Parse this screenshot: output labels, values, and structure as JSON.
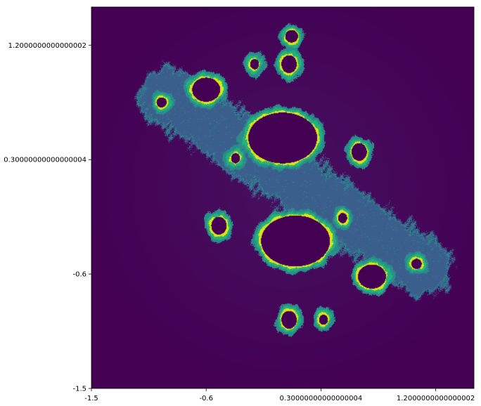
{
  "chart_data": {
    "type": "heatmap",
    "title": "",
    "xlabel": "",
    "ylabel": "",
    "xlim": [
      -1.5,
      1.5
    ],
    "ylim": [
      -1.5,
      1.5
    ],
    "grid": false,
    "colormap": "viridis",
    "background_color": "#440154",
    "colors": {
      "deep": "#440154",
      "outer": "#46105f",
      "blue": "#3b5f8d",
      "teal": "#2a8d8a",
      "green": "#22b37a",
      "yellow": "#dde318",
      "interior": "#440154"
    },
    "x_ticks": [
      {
        "value": -1.5,
        "label": "-1.5"
      },
      {
        "value": -0.6,
        "label": "-0.6"
      },
      {
        "value": 0.30000000000000004,
        "label": "0.30000000000000004"
      },
      {
        "value": 1.2000000000000002,
        "label": "1.2000000000000002"
      }
    ],
    "y_ticks": [
      {
        "value": -1.5,
        "label": "-1.5"
      },
      {
        "value": -0.6,
        "label": "-0.6"
      },
      {
        "value": 0.30000000000000004,
        "label": "0.30000000000000004"
      },
      {
        "value": 1.2000000000000002,
        "label": "1.2000000000000002"
      }
    ],
    "fractal": {
      "kind": "julia set",
      "interior_blobs": [
        {
          "x": 0.0,
          "y": 0.47,
          "rx": 0.27,
          "ry": 0.2
        },
        {
          "x": -0.6,
          "y": 0.85,
          "rx": 0.11,
          "ry": 0.095
        },
        {
          "x": 0.6,
          "y": 0.36,
          "rx": 0.06,
          "ry": 0.07
        },
        {
          "x": -0.95,
          "y": 0.75,
          "rx": 0.04,
          "ry": 0.04
        },
        {
          "x": -0.37,
          "y": 0.31,
          "rx": 0.035,
          "ry": 0.04
        },
        {
          "x": 0.05,
          "y": 1.05,
          "rx": 0.06,
          "ry": 0.07
        },
        {
          "x": 0.07,
          "y": 1.27,
          "rx": 0.05,
          "ry": 0.05
        },
        {
          "x": -0.22,
          "y": 1.05,
          "rx": 0.035,
          "ry": 0.04
        },
        {
          "x": 0.1,
          "y": -0.34,
          "rx": 0.27,
          "ry": 0.2
        },
        {
          "x": 0.7,
          "y": -0.62,
          "rx": 0.11,
          "ry": 0.095
        },
        {
          "x": -0.5,
          "y": -0.22,
          "rx": 0.06,
          "ry": 0.07
        },
        {
          "x": 1.05,
          "y": -0.52,
          "rx": 0.04,
          "ry": 0.04
        },
        {
          "x": 0.47,
          "y": -0.16,
          "rx": 0.035,
          "ry": 0.04
        },
        {
          "x": 0.05,
          "y": -0.96,
          "rx": 0.06,
          "ry": 0.07
        },
        {
          "x": 0.32,
          "y": -0.96,
          "rx": 0.035,
          "ry": 0.04
        }
      ]
    }
  }
}
